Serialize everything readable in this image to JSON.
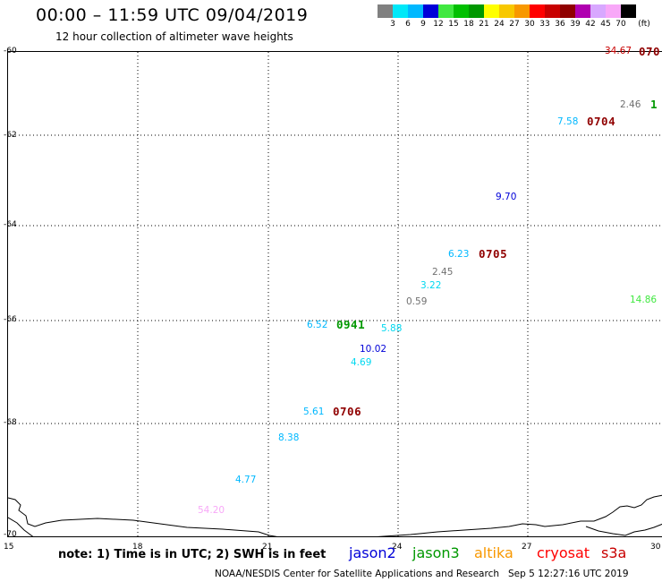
{
  "title": "00:00 – 11:59 UTC 09/04/2019",
  "subtitle": "12 hour collection of altimeter wave heights",
  "legend": {
    "colors": [
      "#808080",
      "#00e8f8",
      "#00b8ff",
      "#0000d8",
      "#40e840",
      "#00c000",
      "#009800",
      "#ffff00",
      "#f8c800",
      "#f89800",
      "#ff0000",
      "#c80000",
      "#900000",
      "#b000b0",
      "#d8a8ff",
      "#f8a8f8",
      "#000000"
    ],
    "labels": [
      "3",
      "6",
      "9",
      "12",
      "15",
      "18",
      "21",
      "24",
      "27",
      "30",
      "33",
      "36",
      "39",
      "42",
      "45",
      "70"
    ],
    "unit": "(ft)"
  },
  "lat_labels": [
    "-60",
    "-62",
    "-64",
    "-66",
    "-68",
    "-70"
  ],
  "lon_labels": [
    "15",
    "18",
    "21",
    "24",
    "27",
    "30"
  ],
  "wave_heights": [
    {
      "text": "34.67",
      "color": "#c80000"
    },
    {
      "text": "2.46",
      "color": "#707070"
    },
    {
      "text": "7.58",
      "color": "#00b8ff"
    },
    {
      "text": "9.70",
      "color": "#0000d8"
    },
    {
      "text": "6.23",
      "color": "#00b8ff"
    },
    {
      "text": "2.45",
      "color": "#707070"
    },
    {
      "text": "3.22",
      "color": "#00d8f0"
    },
    {
      "text": "0.59",
      "color": "#707070"
    },
    {
      "text": "14.86",
      "color": "#40e840"
    },
    {
      "text": "6.52",
      "color": "#00b8ff"
    },
    {
      "text": "5.88",
      "color": "#00d8f0"
    },
    {
      "text": "10.02",
      "color": "#0000d8"
    },
    {
      "text": "4.69",
      "color": "#00d8f0"
    },
    {
      "text": "5.61",
      "color": "#00b8ff"
    },
    {
      "text": "8.38",
      "color": "#00b8ff"
    },
    {
      "text": "4.77",
      "color": "#00b8ff"
    },
    {
      "text": "54.20",
      "color": "#f8a8f8"
    }
  ],
  "track_labels": [
    {
      "text": "070",
      "color": "#900000"
    },
    {
      "text": "1",
      "color": "#009800"
    },
    {
      "text": "0704",
      "color": "#900000"
    },
    {
      "text": "0705",
      "color": "#900000"
    },
    {
      "text": "0941",
      "color": "#009800"
    },
    {
      "text": "0706",
      "color": "#900000"
    }
  ],
  "note": "note: 1) Time is in UTC; 2) SWH is in feet",
  "satellites": [
    {
      "name": "jason2",
      "color": "#0000d8"
    },
    {
      "name": "jason3",
      "color": "#009800"
    },
    {
      "name": "altika",
      "color": "#f89800"
    },
    {
      "name": "cryosat",
      "color": "#ff0000"
    },
    {
      "name": "s3a",
      "color": "#c80000"
    }
  ],
  "credit": "NOAA/NESDIS Center for Satellite Applications and Research",
  "timestamp": "Sep  5 12:27:16 UTC 2019"
}
